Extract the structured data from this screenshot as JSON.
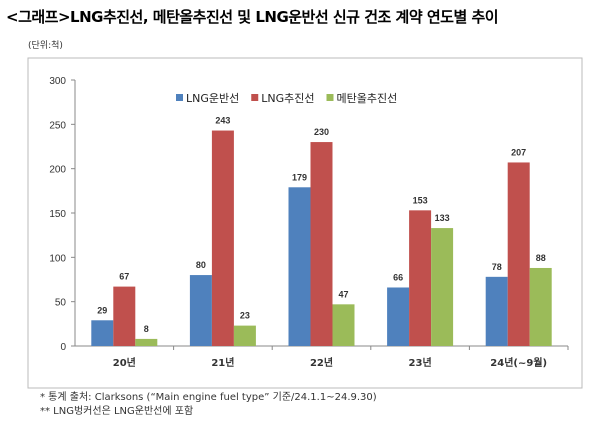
{
  "title": "<그래프>LNG추진선, 메탄올추진선 및 LNG운반선 신규 건조 계약 연도별 추이",
  "unit": "(단위:척)",
  "footnotes": [
    "*  통계 출처: Clarksons (“Main engine fuel type” 기준/24.1.1~24.9.30)",
    "** LNG벙커선은 LNG운반선에 포함"
  ],
  "chart_data": {
    "type": "bar",
    "title": "<그래프>LNG추진선, 메탄올추진선 및 LNG운반선 신규 건조 계약 연도별 추이",
    "xlabel": "",
    "ylabel": "(단위:척)",
    "ylim": [
      0,
      300
    ],
    "yticks": [
      0,
      50,
      100,
      150,
      200,
      250,
      300
    ],
    "grid": false,
    "legend": "top-center",
    "categories": [
      "20년",
      "21년",
      "22년",
      "23년",
      "24년(~9월)"
    ],
    "series": [
      {
        "name": "LNG운반선",
        "color": "#4f81bd",
        "values": [
          29,
          80,
          179,
          66,
          78
        ]
      },
      {
        "name": "LNG추진선",
        "color": "#c0504d",
        "values": [
          67,
          243,
          230,
          153,
          207
        ]
      },
      {
        "name": "메탄올추진선",
        "color": "#9bbb59",
        "values": [
          8,
          23,
          47,
          133,
          88
        ]
      }
    ]
  }
}
